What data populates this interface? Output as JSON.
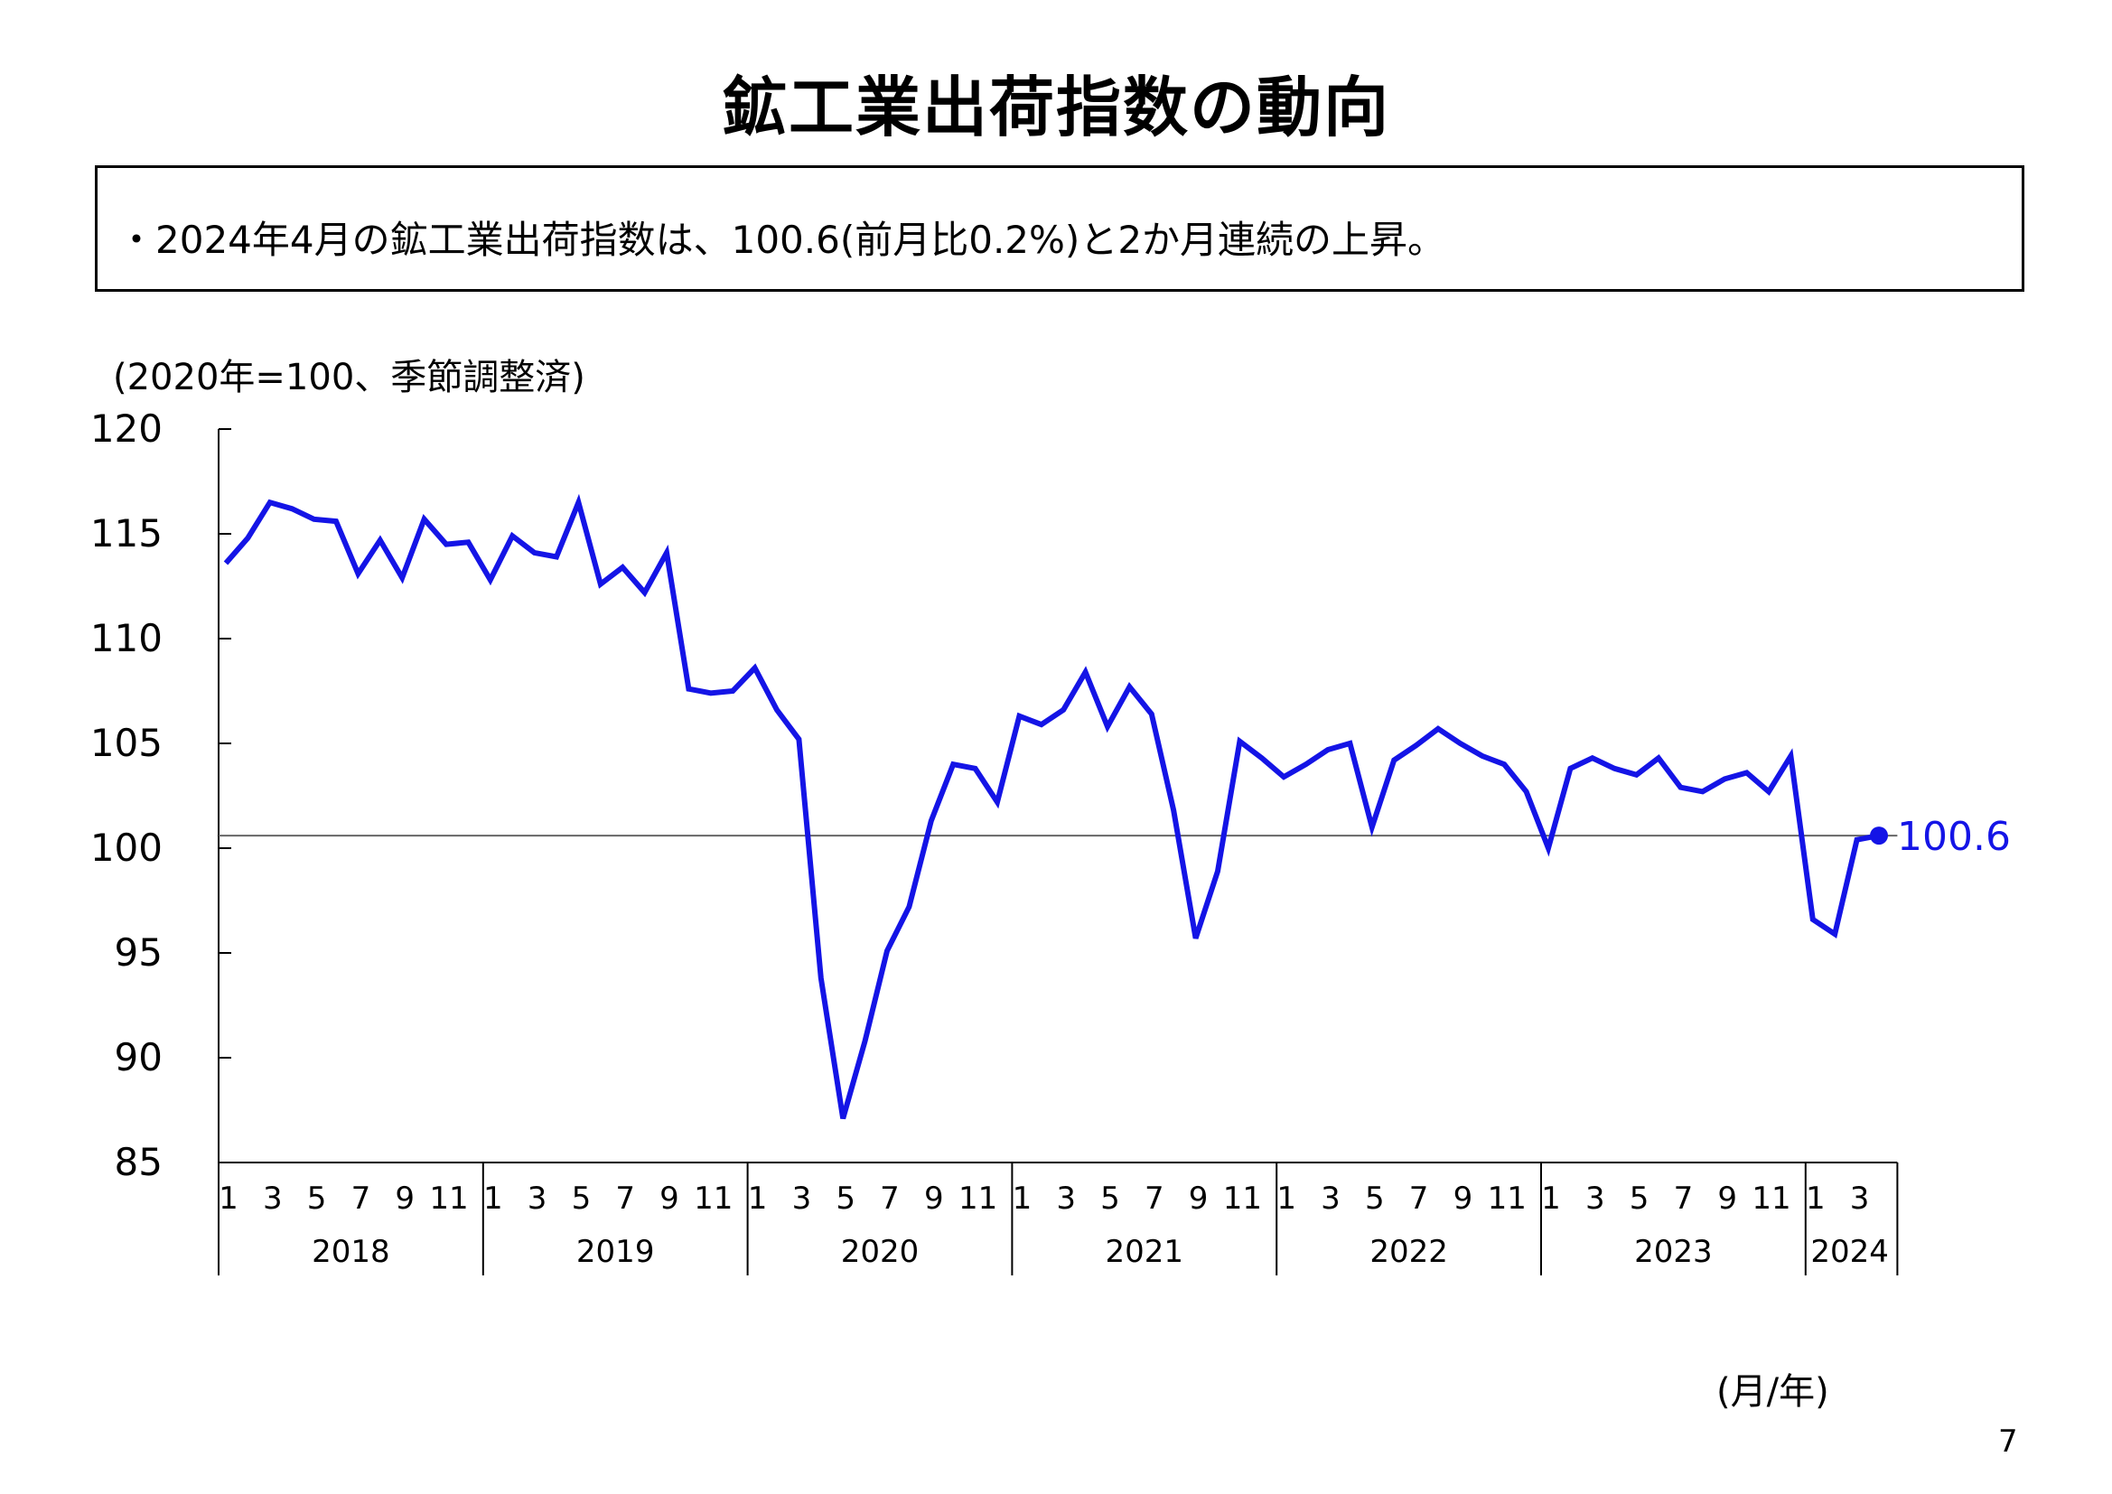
{
  "page": {
    "title": "鉱工業出荷指数の動向",
    "summary": "・2024年4月の鉱工業出荷指数は、100.6(前月比0.2%)と2か月連続の上昇。",
    "unit_note": "(2020年=100、季節調整済)",
    "x_axis_unit": "(月/年)",
    "page_number": "7"
  },
  "chart_data": {
    "type": "line",
    "title": "",
    "xlabel": "(月/年)",
    "ylabel": "(2020年=100、季節調整済)",
    "ylim": [
      85,
      120
    ],
    "yticks": [
      "85",
      "90",
      "95",
      "100",
      "105",
      "110",
      "115",
      "120"
    ],
    "reference_line": 100.6,
    "grid": false,
    "line_color": "#1414E6",
    "years": [
      {
        "label": "2018",
        "months": 12
      },
      {
        "label": "2019",
        "months": 12
      },
      {
        "label": "2020",
        "months": 12
      },
      {
        "label": "2021",
        "months": 12
      },
      {
        "label": "2022",
        "months": 12
      },
      {
        "label": "2023",
        "months": 12
      },
      {
        "label": "2024",
        "months": 4
      }
    ],
    "month_tick_labels": [
      "1",
      "3",
      "5",
      "7",
      "9",
      "11"
    ],
    "end_label": "100.6",
    "series": [
      {
        "values": [
          113.6,
          114.8,
          116.5,
          116.2,
          115.7,
          115.6,
          113.1,
          114.7,
          112.9,
          115.7,
          114.5,
          114.6,
          112.8,
          114.9,
          114.1,
          113.9,
          116.5,
          112.6,
          113.4,
          112.2,
          114.1,
          107.6,
          107.4,
          107.5,
          108.6,
          106.6,
          105.2,
          93.8,
          87.1,
          90.8,
          95.1,
          97.2,
          101.3,
          104.0,
          103.8,
          102.2,
          106.3,
          105.9,
          106.6,
          108.4,
          105.8,
          107.7,
          106.4,
          101.8,
          95.7,
          98.9,
          105.1,
          104.3,
          103.4,
          104.0,
          104.7,
          105.0,
          101.0,
          104.2,
          104.9,
          105.7,
          105.0,
          104.4,
          104.0,
          102.7,
          100.0,
          103.8,
          104.3,
          103.8,
          103.5,
          104.3,
          102.9,
          102.7,
          103.3,
          103.6,
          102.7,
          104.4,
          96.6,
          95.9,
          100.4,
          100.6
        ]
      }
    ]
  }
}
